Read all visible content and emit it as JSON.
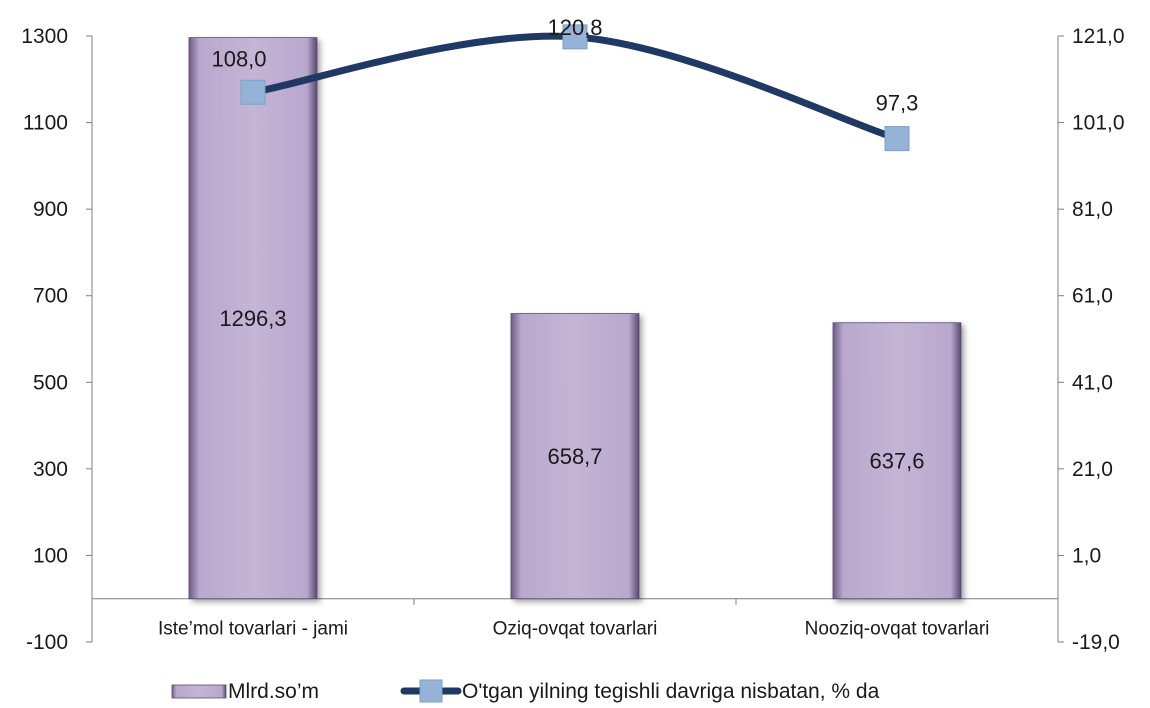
{
  "chart_data": {
    "type": "bar",
    "categories": [
      "Iste’mol tovarlari - jami",
      "Oziq-ovqat tovarlari",
      "Nooziq-ovqat tovarlari"
    ],
    "series": [
      {
        "name": "Mlrd.so’m",
        "type": "bar",
        "axis": "left",
        "values": [
          1296.3,
          658.7,
          637.6
        ],
        "labels": [
          "1296,3",
          "658,7",
          "637,6"
        ],
        "color": "#b3a2c7"
      },
      {
        "name": "O'tgan yilning tegishli davriga nisbatan, % da",
        "type": "line",
        "axis": "right",
        "values": [
          108.0,
          120.8,
          97.3
        ],
        "labels": [
          "108,0",
          "120,8",
          "97,3"
        ],
        "line_color": "#1f3864",
        "marker_color": "#95b3d7"
      }
    ],
    "y_left": {
      "min": -100,
      "max": 1300,
      "ticks": [
        -100,
        100,
        300,
        500,
        700,
        900,
        1100,
        1300
      ],
      "tick_labels": [
        "-100",
        "100",
        "300",
        "500",
        "700",
        "900",
        "1100",
        "1300"
      ]
    },
    "y_right": {
      "min": -19,
      "max": 121,
      "ticks": [
        -19,
        1,
        21,
        41,
        61,
        81,
        101,
        121
      ],
      "tick_labels": [
        "-19,0",
        "1,0",
        "21,0",
        "41,0",
        "61,0",
        "81,0",
        "101,0",
        "121,0"
      ]
    },
    "legend": {
      "position": "bottom",
      "entries": [
        "Mlrd.so’m",
        "O'tgan yilning tegishli davriga nisbatan, % da"
      ]
    },
    "grid": false
  }
}
